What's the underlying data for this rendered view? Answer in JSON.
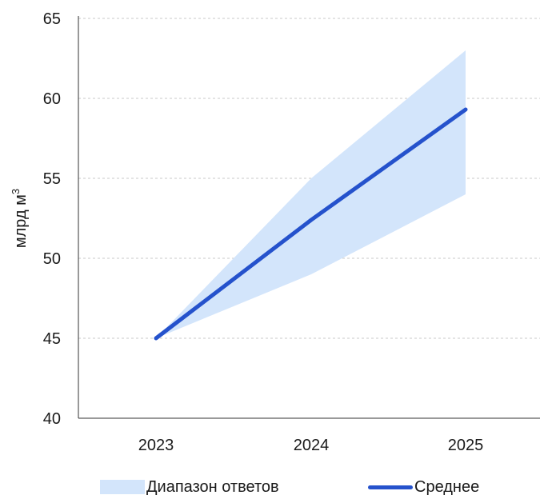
{
  "chart_data": {
    "type": "line",
    "x": [
      "2023",
      "2024",
      "2025"
    ],
    "ylabel": "млрд м",
    "ylabel_sup": "3",
    "ylim": [
      40,
      65
    ],
    "yticks": [
      40,
      45,
      50,
      55,
      60,
      65
    ],
    "grid": true,
    "legend_position": "bottom",
    "series": [
      {
        "name": "Диапазон ответов",
        "kind": "band",
        "low": [
          45,
          49,
          54
        ],
        "high": [
          45,
          55,
          63
        ],
        "color": "#d3e5fb"
      },
      {
        "name": "Среднее",
        "kind": "line",
        "values": [
          45,
          52.4,
          59.3
        ],
        "color": "#2552cc"
      }
    ]
  }
}
